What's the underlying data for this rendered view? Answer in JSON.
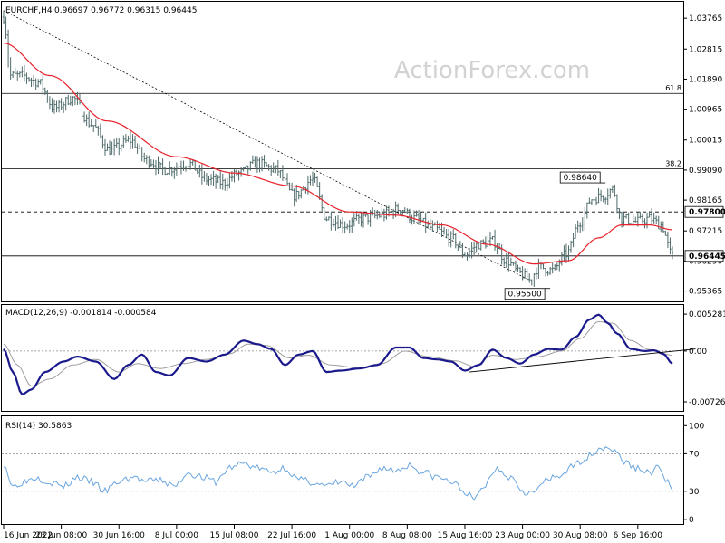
{
  "colors": {
    "background": "#ffffff",
    "bar": "#4f6b6b",
    "ma_line": "#e8202a",
    "macd_line": "#1a1a8c",
    "signal_line": "#9e9e9e",
    "rsi_line": "#6aa6e0",
    "watermark": "#d4d4d4",
    "price_label_bg": "#ffffff"
  },
  "watermark": "ActionForex.com",
  "chart_data": [
    {
      "type": "line",
      "panel": "price",
      "header": {
        "symbol_tf": "EURCHF,H4",
        "ohlc": "0.96697 0.96772 0.96315 0.96445"
      },
      "ylim": [
        0.9513,
        1.0416
      ],
      "y_ticks": [
        "1.03765",
        "1.02815",
        "1.01890",
        "1.00965",
        "1.00015",
        "0.99090",
        "0.98165",
        "0.97215",
        "0.96290",
        "0.95365"
      ],
      "y_tick_values": [
        1.03765,
        1.02815,
        1.0189,
        1.00965,
        1.00015,
        0.9909,
        0.98165,
        0.97215,
        0.9629,
        0.95365
      ],
      "x_ticks": [
        "16 Jun 2022",
        "23 Jun 08:00",
        "30 Jun 16:00",
        "8 Jul 00:00",
        "15 Jul 08:00",
        "22 Jul 16:00",
        "1 Aug 00:00",
        "8 Aug 08:00",
        "15 Aug 16:00",
        "23 Aug 00:00",
        "30 Aug 08:00",
        "6 Sep 16:00"
      ],
      "x_tick_positions": [
        0,
        25,
        50,
        75,
        100,
        125,
        150,
        175,
        200,
        225,
        250,
        275
      ],
      "bar_count": 290,
      "close_anchors": [
        [
          0,
          1.038
        ],
        [
          3,
          1.02
        ],
        [
          8,
          1.02
        ],
        [
          15,
          1.018
        ],
        [
          22,
          1.01
        ],
        [
          30,
          1.013
        ],
        [
          38,
          1.005
        ],
        [
          46,
          0.997
        ],
        [
          55,
          1.0
        ],
        [
          62,
          0.994
        ],
        [
          70,
          0.991
        ],
        [
          80,
          0.993
        ],
        [
          88,
          0.988
        ],
        [
          95,
          0.987
        ],
        [
          102,
          0.99
        ],
        [
          110,
          0.993
        ],
        [
          118,
          0.991
        ],
        [
          126,
          0.983
        ],
        [
          134,
          0.988
        ],
        [
          140,
          0.976
        ],
        [
          148,
          0.974
        ],
        [
          156,
          0.976
        ],
        [
          164,
          0.977
        ],
        [
          172,
          0.979
        ],
        [
          178,
          0.976
        ],
        [
          186,
          0.973
        ],
        [
          194,
          0.97
        ],
        [
          200,
          0.965
        ],
        [
          206,
          0.968
        ],
        [
          212,
          0.969
        ],
        [
          218,
          0.963
        ],
        [
          224,
          0.959
        ],
        [
          228,
          0.957
        ],
        [
          232,
          0.961
        ],
        [
          238,
          0.96
        ],
        [
          244,
          0.965
        ],
        [
          250,
          0.975
        ],
        [
          255,
          0.982
        ],
        [
          260,
          0.983
        ],
        [
          264,
          0.985
        ],
        [
          268,
          0.976
        ],
        [
          274,
          0.975
        ],
        [
          280,
          0.976
        ],
        [
          285,
          0.974
        ],
        [
          290,
          0.9645
        ]
      ],
      "ma_anchors": [
        [
          0,
          1.03
        ],
        [
          20,
          1.02
        ],
        [
          45,
          1.006
        ],
        [
          75,
          0.995
        ],
        [
          100,
          0.99
        ],
        [
          125,
          0.986
        ],
        [
          150,
          0.978
        ],
        [
          170,
          0.977
        ],
        [
          190,
          0.974
        ],
        [
          210,
          0.968
        ],
        [
          230,
          0.962
        ],
        [
          245,
          0.963
        ],
        [
          258,
          0.97
        ],
        [
          268,
          0.974
        ],
        [
          280,
          0.974
        ],
        [
          290,
          0.9725
        ]
      ],
      "hlines": [
        {
          "value": 1.0145,
          "style": "solid",
          "label": "61.8"
        },
        {
          "value": 0.9913,
          "style": "solid",
          "label": "38.2"
        },
        {
          "value": 0.978,
          "style": "dashed",
          "tag": "0.97800"
        },
        {
          "value": 0.96445,
          "style": "solid",
          "tag": "0.96445"
        }
      ],
      "trendline": {
        "x1": 0,
        "y1": 1.04,
        "x2": 228,
        "y2": 0.957
      },
      "callouts": [
        {
          "text": "0.98640",
          "x": 250,
          "value": 0.9864
        },
        {
          "text": "0.95500",
          "x": 226,
          "value": 0.955
        }
      ]
    },
    {
      "type": "line",
      "panel": "macd",
      "header": "MACD(12,26,9) -0.001814 -0.000584",
      "ylim": [
        -0.0083,
        0.0062
      ],
      "y_ticks": [
        "0.005281",
        "0.00",
        "-0.007263"
      ],
      "y_tick_values": [
        0.005281,
        0.0,
        -0.007263
      ],
      "macd_anchors": [
        [
          0,
          0.0003
        ],
        [
          4,
          -0.003
        ],
        [
          8,
          -0.0062
        ],
        [
          12,
          -0.0055
        ],
        [
          18,
          -0.003
        ],
        [
          26,
          -0.0015
        ],
        [
          32,
          -0.0008
        ],
        [
          40,
          -0.0015
        ],
        [
          48,
          -0.004
        ],
        [
          54,
          -0.002
        ],
        [
          60,
          -0.0005
        ],
        [
          66,
          -0.003
        ],
        [
          72,
          -0.0035
        ],
        [
          80,
          -0.001
        ],
        [
          88,
          -0.0015
        ],
        [
          96,
          -0.0005
        ],
        [
          104,
          0.0015
        ],
        [
          110,
          0.001
        ],
        [
          116,
          0.0003
        ],
        [
          122,
          -0.002
        ],
        [
          128,
          -0.0005
        ],
        [
          134,
          0.0
        ],
        [
          140,
          -0.003
        ],
        [
          146,
          -0.0028
        ],
        [
          154,
          -0.0025
        ],
        [
          162,
          -0.002
        ],
        [
          170,
          0.0005
        ],
        [
          176,
          0.0005
        ],
        [
          182,
          -0.001
        ],
        [
          188,
          -0.0012
        ],
        [
          194,
          -0.0015
        ],
        [
          200,
          -0.0028
        ],
        [
          206,
          -0.002
        ],
        [
          212,
          0.0002
        ],
        [
          218,
          -0.001
        ],
        [
          224,
          -0.0018
        ],
        [
          230,
          -0.0005
        ],
        [
          236,
          0.0003
        ],
        [
          242,
          0.0002
        ],
        [
          248,
          0.002
        ],
        [
          254,
          0.0045
        ],
        [
          258,
          0.0052
        ],
        [
          262,
          0.004
        ],
        [
          266,
          0.0025
        ],
        [
          272,
          0.0003
        ],
        [
          278,
          0.0
        ],
        [
          282,
          0.0001
        ],
        [
          286,
          -0.0004
        ],
        [
          290,
          -0.0018
        ]
      ],
      "signal_anchors": [
        [
          0,
          0.001
        ],
        [
          6,
          -0.002
        ],
        [
          12,
          -0.005
        ],
        [
          20,
          -0.004
        ],
        [
          30,
          -0.002
        ],
        [
          40,
          -0.0012
        ],
        [
          50,
          -0.003
        ],
        [
          58,
          -0.0018
        ],
        [
          68,
          -0.0025
        ],
        [
          78,
          -0.0018
        ],
        [
          88,
          -0.0012
        ],
        [
          98,
          -0.0004
        ],
        [
          106,
          0.001
        ],
        [
          114,
          0.0008
        ],
        [
          124,
          -0.001
        ],
        [
          132,
          -0.0006
        ],
        [
          142,
          -0.002
        ],
        [
          154,
          -0.0024
        ],
        [
          164,
          -0.0018
        ],
        [
          174,
          0.0
        ],
        [
          184,
          -0.0008
        ],
        [
          196,
          -0.0014
        ],
        [
          204,
          -0.0022
        ],
        [
          212,
          -0.0006
        ],
        [
          222,
          -0.0012
        ],
        [
          232,
          -0.0008
        ],
        [
          242,
          0.0
        ],
        [
          250,
          0.0018
        ],
        [
          258,
          0.0042
        ],
        [
          264,
          0.004
        ],
        [
          272,
          0.0015
        ],
        [
          280,
          0.0002
        ],
        [
          290,
          -0.0006
        ]
      ],
      "trendline": {
        "x1": 202,
        "y1": -0.003,
        "x2": 300,
        "y2": 0.0003
      }
    },
    {
      "type": "line",
      "panel": "rsi",
      "header": "RSI(14) 30.5863",
      "ylim": [
        -4,
        108
      ],
      "y_ticks": [
        "100",
        "70",
        "30",
        "0"
      ],
      "y_tick_values": [
        100,
        70,
        30,
        0
      ],
      "dotted_levels": [
        70,
        30
      ],
      "rsi_anchors": [
        [
          0,
          60
        ],
        [
          4,
          35
        ],
        [
          8,
          40
        ],
        [
          14,
          45
        ],
        [
          20,
          40
        ],
        [
          26,
          35
        ],
        [
          32,
          45
        ],
        [
          38,
          40
        ],
        [
          44,
          30
        ],
        [
          50,
          40
        ],
        [
          56,
          45
        ],
        [
          62,
          40
        ],
        [
          68,
          42
        ],
        [
          74,
          35
        ],
        [
          80,
          50
        ],
        [
          86,
          45
        ],
        [
          92,
          40
        ],
        [
          98,
          55
        ],
        [
          104,
          60
        ],
        [
          110,
          55
        ],
        [
          116,
          50
        ],
        [
          122,
          55
        ],
        [
          128,
          42
        ],
        [
          134,
          40
        ],
        [
          140,
          35
        ],
        [
          146,
          40
        ],
        [
          152,
          35
        ],
        [
          158,
          45
        ],
        [
          164,
          55
        ],
        [
          170,
          52
        ],
        [
          176,
          58
        ],
        [
          182,
          50
        ],
        [
          188,
          45
        ],
        [
          194,
          40
        ],
        [
          200,
          30
        ],
        [
          204,
          20
        ],
        [
          208,
          35
        ],
        [
          214,
          55
        ],
        [
          220,
          45
        ],
        [
          226,
          30
        ],
        [
          230,
          28
        ],
        [
          234,
          40
        ],
        [
          240,
          45
        ],
        [
          246,
          55
        ],
        [
          252,
          65
        ],
        [
          258,
          75
        ],
        [
          262,
          78
        ],
        [
          266,
          70
        ],
        [
          270,
          60
        ],
        [
          274,
          55
        ],
        [
          280,
          50
        ],
        [
          284,
          55
        ],
        [
          288,
          40
        ],
        [
          290,
          30.5863
        ]
      ]
    }
  ]
}
